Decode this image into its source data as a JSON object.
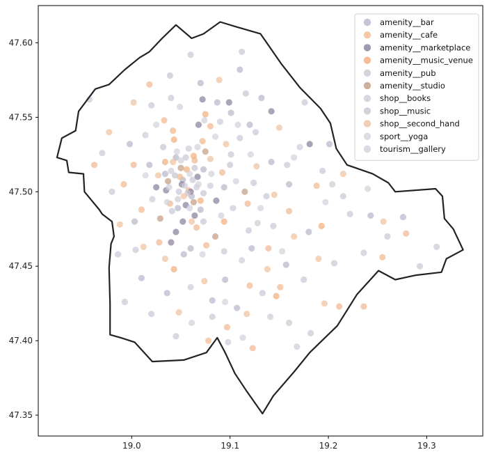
{
  "chart_data": {
    "type": "scatter",
    "title": "",
    "xlabel": "",
    "ylabel": "",
    "xlim": [
      18.905,
      19.357
    ],
    "ylim": [
      47.336,
      47.625
    ],
    "x_ticks": [
      19.0,
      19.1,
      19.2,
      19.3
    ],
    "x_tick_labels": [
      "19.0",
      "19.1",
      "19.2",
      "19.3"
    ],
    "y_ticks": [
      47.35,
      47.4,
      47.45,
      47.5,
      47.55,
      47.6
    ],
    "y_tick_labels": [
      "47.35",
      "47.40",
      "47.45",
      "47.50",
      "47.55",
      "47.60"
    ],
    "grid": false,
    "legend_position": "top-right",
    "boundary": {
      "description": "city boundary outline",
      "color": "#222222",
      "points": [
        [
          18.924,
          47.523
        ],
        [
          18.934,
          47.521
        ],
        [
          18.936,
          47.513
        ],
        [
          18.951,
          47.512
        ],
        [
          18.952,
          47.5
        ],
        [
          18.967,
          47.488
        ],
        [
          18.97,
          47.485
        ],
        [
          18.98,
          47.48
        ],
        [
          18.982,
          47.47
        ],
        [
          18.979,
          47.465
        ],
        [
          18.977,
          47.449
        ],
        [
          18.978,
          47.425
        ],
        [
          18.978,
          47.404
        ],
        [
          18.989,
          47.402
        ],
        [
          19.003,
          47.399
        ],
        [
          19.021,
          47.386
        ],
        [
          19.053,
          47.387
        ],
        [
          19.076,
          47.392
        ],
        [
          19.087,
          47.402
        ],
        [
          19.095,
          47.392
        ],
        [
          19.105,
          47.378
        ],
        [
          19.117,
          47.366
        ],
        [
          19.133,
          47.351
        ],
        [
          19.144,
          47.363
        ],
        [
          19.165,
          47.379
        ],
        [
          19.181,
          47.392
        ],
        [
          19.209,
          47.41
        ],
        [
          19.229,
          47.431
        ],
        [
          19.251,
          47.447
        ],
        [
          19.268,
          47.441
        ],
        [
          19.289,
          47.444
        ],
        [
          19.315,
          47.446
        ],
        [
          19.32,
          47.455
        ],
        [
          19.337,
          47.461
        ],
        [
          19.327,
          47.475
        ],
        [
          19.318,
          47.482
        ],
        [
          19.316,
          47.497
        ],
        [
          19.309,
          47.502
        ],
        [
          19.268,
          47.5
        ],
        [
          19.261,
          47.506
        ],
        [
          19.245,
          47.512
        ],
        [
          19.219,
          47.518
        ],
        [
          19.208,
          47.529
        ],
        [
          19.202,
          47.546
        ],
        [
          19.192,
          47.556
        ],
        [
          19.171,
          47.57
        ],
        [
          19.152,
          47.586
        ],
        [
          19.131,
          47.606
        ],
        [
          19.105,
          47.611
        ],
        [
          19.09,
          47.614
        ],
        [
          19.073,
          47.606
        ],
        [
          19.061,
          47.603
        ],
        [
          19.045,
          47.612
        ],
        [
          19.031,
          47.603
        ],
        [
          19.018,
          47.594
        ],
        [
          19.008,
          47.59
        ],
        [
          18.993,
          47.582
        ],
        [
          18.977,
          47.572
        ],
        [
          18.963,
          47.569
        ],
        [
          18.946,
          47.554
        ],
        [
          18.943,
          47.541
        ],
        [
          18.929,
          47.536
        ],
        [
          18.924,
          47.523
        ]
      ]
    },
    "series": [
      {
        "name": "amenity__bar",
        "color": "#b7b8cb",
        "points": [
          [
            19.052,
            47.508
          ],
          [
            19.061,
            47.497
          ],
          [
            19.045,
            47.523
          ],
          [
            19.07,
            47.488
          ],
          [
            19.034,
            47.512
          ],
          [
            19.087,
            47.56
          ],
          [
            19.101,
            47.553
          ],
          [
            19.12,
            47.545
          ],
          [
            19.142,
            47.52
          ],
          [
            19.16,
            47.505
          ],
          [
            19.18,
            47.473
          ],
          [
            19.122,
            47.462
          ],
          [
            19.095,
            47.441
          ],
          [
            19.082,
            47.427
          ],
          [
            19.036,
            47.432
          ],
          [
            19.01,
            47.442
          ],
          [
            19.003,
            47.48
          ],
          [
            19.018,
            47.518
          ],
          [
            19.07,
            47.573
          ],
          [
            19.11,
            47.582
          ],
          [
            19.132,
            47.563
          ],
          [
            19.201,
            47.532
          ],
          [
            19.243,
            47.484
          ],
          [
            19.276,
            47.483
          ],
          [
            19.06,
            47.462
          ],
          [
            19.047,
            47.489
          ],
          [
            19.073,
            47.515
          ],
          [
            19.094,
            47.503
          ],
          [
            18.998,
            47.532
          ],
          [
            19.157,
            47.451
          ],
          [
            19.107,
            47.422
          ],
          [
            19.053,
            47.458
          ]
        ]
      },
      {
        "name": "amenity__cafe",
        "color": "#f3b991",
        "points": [
          [
            19.049,
            47.51
          ],
          [
            19.058,
            47.501
          ],
          [
            19.064,
            47.521
          ],
          [
            19.039,
            47.492
          ],
          [
            19.072,
            47.534
          ],
          [
            19.033,
            47.548
          ],
          [
            19.018,
            47.572
          ],
          [
            19.08,
            47.544
          ],
          [
            19.092,
            47.513
          ],
          [
            19.066,
            47.476
          ],
          [
            19.028,
            47.466
          ],
          [
            19.01,
            47.488
          ],
          [
            19.002,
            47.518
          ],
          [
            18.962,
            47.518
          ],
          [
            18.992,
            47.505
          ],
          [
            19.118,
            47.492
          ],
          [
            19.139,
            47.462
          ],
          [
            19.151,
            47.436
          ],
          [
            19.12,
            47.437
          ],
          [
            19.097,
            47.409
          ],
          [
            19.078,
            47.4
          ],
          [
            19.123,
            47.395
          ],
          [
            19.16,
            47.487
          ],
          [
            19.188,
            47.504
          ],
          [
            19.236,
            47.423
          ],
          [
            19.211,
            47.423
          ],
          [
            19.279,
            47.472
          ],
          [
            19.255,
            47.456
          ],
          [
            19.042,
            47.541
          ],
          [
            19.076,
            47.464
          ]
        ]
      },
      {
        "name": "amenity__marketplace",
        "color": "#8a819c",
        "points": [
          [
            19.051,
            47.505
          ],
          [
            19.06,
            47.5
          ],
          [
            19.035,
            47.501
          ],
          [
            19.064,
            47.484
          ],
          [
            19.045,
            47.473
          ],
          [
            19.072,
            47.562
          ],
          [
            19.142,
            47.554
          ],
          [
            19.181,
            47.532
          ],
          [
            19.04,
            47.466
          ],
          [
            19.055,
            47.491
          ],
          [
            19.067,
            47.51
          ],
          [
            19.025,
            47.503
          ],
          [
            19.068,
            47.545
          ],
          [
            19.099,
            47.56
          ],
          [
            19.052,
            47.48
          ],
          [
            19.086,
            47.494
          ]
        ]
      },
      {
        "name": "amenity__music_venue",
        "color": "#f2ae7e",
        "points": [
          [
            19.056,
            47.515
          ],
          [
            19.043,
            47.535
          ],
          [
            19.07,
            47.494
          ],
          [
            19.034,
            47.52
          ],
          [
            19.075,
            47.552
          ],
          [
            19.094,
            47.48
          ],
          [
            19.043,
            47.448
          ],
          [
            19.147,
            47.43
          ],
          [
            19.193,
            47.477
          ],
          [
            19.063,
            47.524
          ]
        ]
      },
      {
        "name": "amenity__pub",
        "color": "#c9c9d7",
        "points": [
          [
            19.048,
            47.5
          ],
          [
            19.062,
            47.508
          ],
          [
            19.055,
            47.523
          ],
          [
            19.073,
            47.48
          ],
          [
            19.041,
            47.487
          ],
          [
            19.11,
            47.536
          ],
          [
            19.124,
            47.506
          ],
          [
            19.094,
            47.46
          ],
          [
            19.144,
            47.477
          ],
          [
            19.175,
            47.441
          ],
          [
            19.206,
            47.452
          ],
          [
            19.222,
            47.485
          ],
          [
            19.26,
            47.47
          ],
          [
            19.293,
            47.45
          ],
          [
            19.31,
            47.463
          ],
          [
            19.182,
            47.405
          ],
          [
            19.16,
            47.412
          ],
          [
            19.133,
            47.432
          ],
          [
            19.082,
            47.416
          ],
          [
            19.045,
            47.403
          ],
          [
            19.02,
            47.418
          ],
          [
            18.993,
            47.426
          ],
          [
            18.986,
            47.458
          ],
          [
            18.98,
            47.5
          ],
          [
            18.97,
            47.526
          ],
          [
            18.957,
            47.562
          ],
          [
            19.02,
            47.558
          ],
          [
            19.06,
            47.592
          ],
          [
            19.112,
            47.594
          ],
          [
            19.126,
            47.54
          ],
          [
            19.137,
            47.497
          ],
          [
            19.158,
            47.518
          ],
          [
            19.194,
            47.514
          ],
          [
            19.176,
            47.56
          ],
          [
            19.215,
            47.497
          ],
          [
            19.236,
            47.459
          ],
          [
            19.04,
            47.563
          ],
          [
            19.101,
            47.525
          ],
          [
            19.004,
            47.461
          ],
          [
            19.119,
            47.474
          ]
        ]
      },
      {
        "name": "amenity__studio",
        "color": "#c39d86",
        "points": [
          [
            19.05,
            47.516
          ],
          [
            19.063,
            47.493
          ],
          [
            19.037,
            47.507
          ],
          [
            19.075,
            47.527
          ],
          [
            19.029,
            47.482
          ],
          [
            19.085,
            47.47
          ],
          [
            19.115,
            47.5
          ]
        ]
      },
      {
        "name": "shop__books",
        "color": "#cdcdd8",
        "points": [
          [
            19.054,
            47.504
          ],
          [
            19.047,
            47.495
          ],
          [
            19.066,
            47.503
          ],
          [
            19.058,
            47.529
          ],
          [
            19.04,
            47.514
          ],
          [
            19.08,
            47.504
          ],
          [
            19.103,
            47.489
          ],
          [
            19.128,
            47.479
          ],
          [
            19.09,
            47.547
          ],
          [
            19.014,
            47.538
          ],
          [
            19.021,
            47.495
          ],
          [
            19.112,
            47.454
          ],
          [
            19.141,
            47.416
          ],
          [
            19.168,
            47.396
          ],
          [
            19.098,
            47.399
          ],
          [
            19.06,
            47.436
          ],
          [
            19.171,
            47.53
          ],
          [
            19.204,
            47.505
          ]
        ]
      },
      {
        "name": "shop__music",
        "color": "#c8c6d3",
        "points": [
          [
            19.057,
            47.499
          ],
          [
            19.044,
            47.511
          ],
          [
            19.064,
            47.516
          ],
          [
            19.032,
            47.53
          ],
          [
            19.073,
            47.499
          ],
          [
            19.1,
            47.518
          ],
          [
            19.116,
            47.566
          ],
          [
            19.039,
            47.578
          ]
        ]
      },
      {
        "name": "shop__second_hand",
        "color": "#f0c2a1",
        "points": [
          [
            19.053,
            47.497
          ],
          [
            19.042,
            47.52
          ],
          [
            19.061,
            47.48
          ],
          [
            19.027,
            47.511
          ],
          [
            19.08,
            47.522
          ],
          [
            19.096,
            47.532
          ],
          [
            19.127,
            47.517
          ],
          [
            19.145,
            47.498
          ],
          [
            19.165,
            47.47
          ],
          [
            19.19,
            47.455
          ],
          [
            19.138,
            47.448
          ],
          [
            19.117,
            47.418
          ],
          [
            19.074,
            47.44
          ],
          [
            19.048,
            47.419
          ],
          [
            19.012,
            47.463
          ],
          [
            18.988,
            47.478
          ],
          [
            18.977,
            47.54
          ],
          [
            19.034,
            47.455
          ],
          [
            19.002,
            47.56
          ],
          [
            19.089,
            47.575
          ],
          [
            19.215,
            47.512
          ],
          [
            19.256,
            47.48
          ],
          [
            19.15,
            47.543
          ],
          [
            19.196,
            47.425
          ]
        ]
      },
      {
        "name": "sport__yoga",
        "color": "#d4d3dc",
        "points": [
          [
            19.059,
            47.512
          ],
          [
            19.046,
            47.527
          ],
          [
            19.068,
            47.505
          ],
          [
            19.036,
            47.493
          ],
          [
            19.085,
            47.537
          ],
          [
            19.106,
            47.507
          ],
          [
            19.131,
            47.489
          ],
          [
            19.153,
            47.46
          ],
          [
            19.014,
            47.511
          ],
          [
            19.072,
            47.458
          ],
          [
            19.095,
            47.426
          ]
        ]
      },
      {
        "name": "tourism__gallery",
        "color": "#d2d1dc",
        "points": [
          [
            19.05,
            47.521
          ],
          [
            19.059,
            47.489
          ],
          [
            19.067,
            47.53
          ],
          [
            19.038,
            47.503
          ],
          [
            19.081,
            47.512
          ],
          [
            19.074,
            47.548
          ],
          [
            19.108,
            47.545
          ],
          [
            19.049,
            47.557
          ],
          [
            19.025,
            47.545
          ],
          [
            19.091,
            47.484
          ],
          [
            19.121,
            47.525
          ],
          [
            19.165,
            47.523
          ],
          [
            19.197,
            47.493
          ],
          [
            19.24,
            47.502
          ],
          [
            19.061,
            47.412
          ],
          [
            19.113,
            47.402
          ]
        ]
      }
    ]
  }
}
